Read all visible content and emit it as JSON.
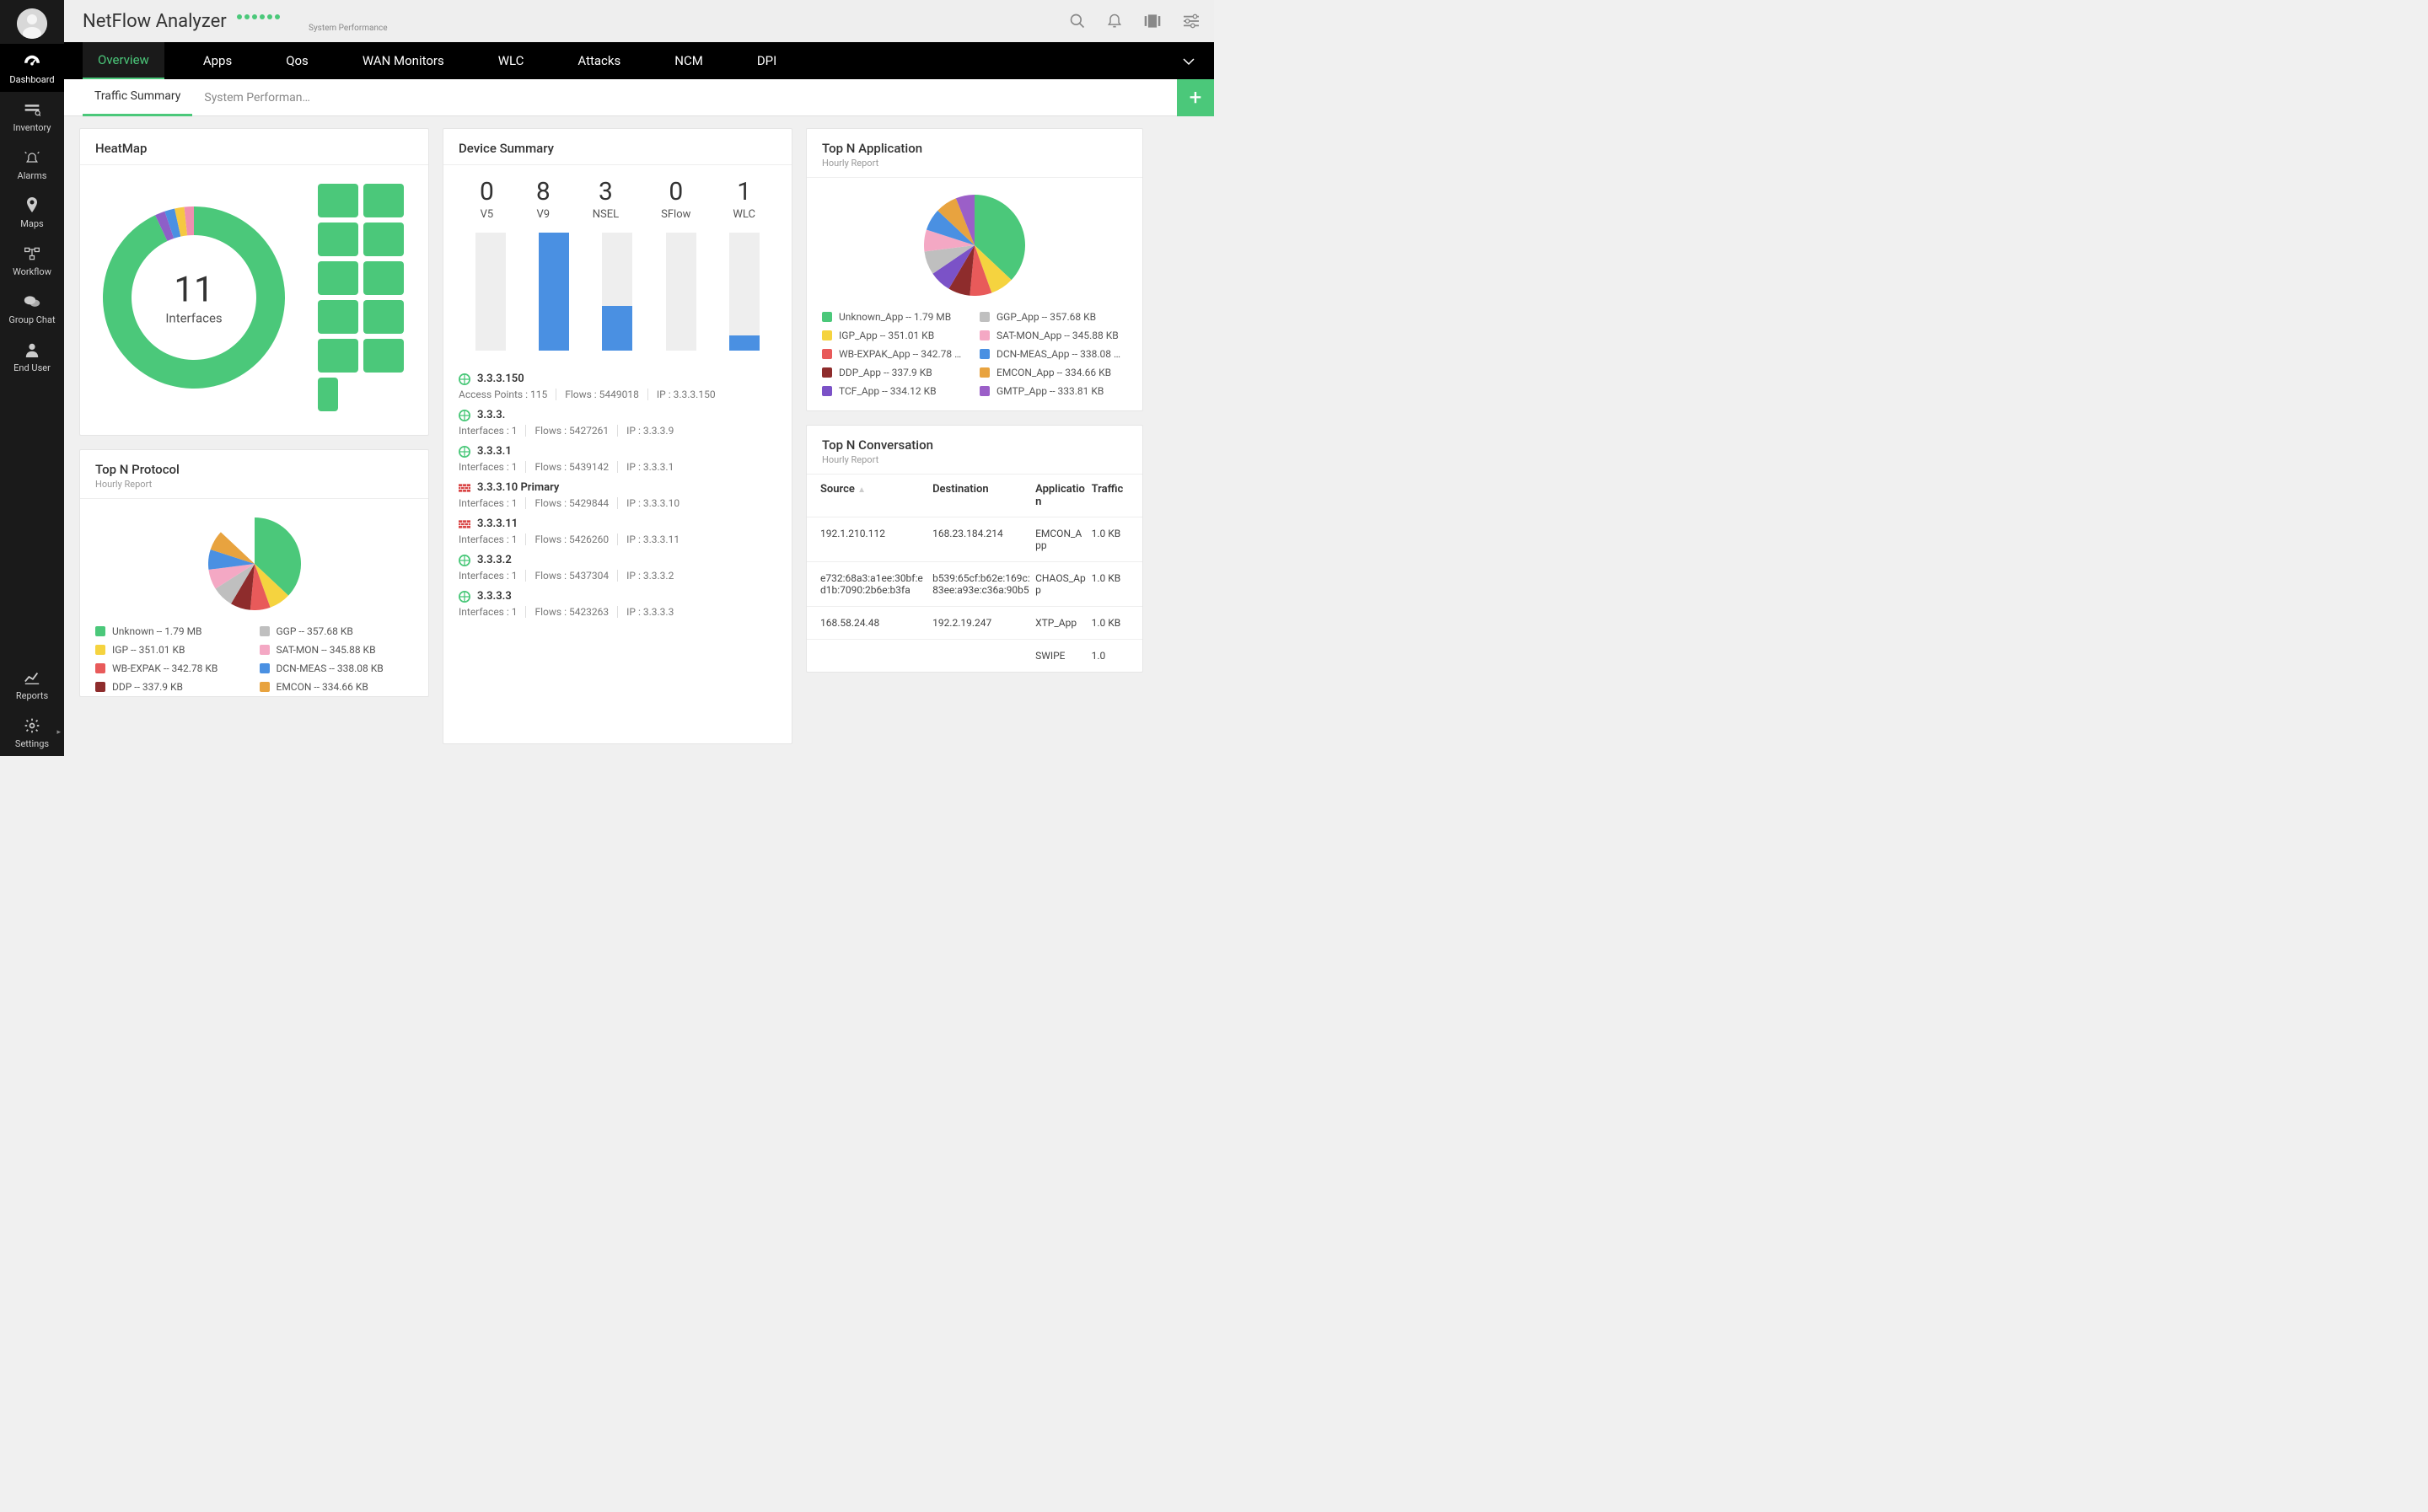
{
  "app": {
    "title": "NetFlow Analyzer",
    "perf_label": "System Performance"
  },
  "sidebar": {
    "items": [
      {
        "label": "Dashboard"
      },
      {
        "label": "Inventory"
      },
      {
        "label": "Alarms"
      },
      {
        "label": "Maps"
      },
      {
        "label": "Workflow"
      },
      {
        "label": "Group Chat"
      },
      {
        "label": "End User"
      }
    ],
    "bottom": [
      {
        "label": "Reports"
      },
      {
        "label": "Settings"
      }
    ]
  },
  "mainnav": [
    "Overview",
    "Apps",
    "Qos",
    "WAN Monitors",
    "WLC",
    "Attacks",
    "NCM",
    "DPI"
  ],
  "subnav": [
    "Traffic Summary",
    "System Performan…"
  ],
  "heatmap": {
    "title": "HeatMap",
    "count": "11",
    "count_label": "Interfaces",
    "donut_colors": [
      "#4bc87a",
      "#8e5fc8",
      "#4a90e2",
      "#f5c842",
      "#f08fb0"
    ],
    "donut_fractions": [
      0.93,
      0.018,
      0.018,
      0.017,
      0.017
    ],
    "grid_cells": 11,
    "cell_color": "#4bc87a"
  },
  "device_summary": {
    "title": "Device Summary",
    "columns": [
      {
        "num": "0",
        "label": "V5",
        "bar": 0
      },
      {
        "num": "8",
        "label": "V9",
        "bar": 100
      },
      {
        "num": "3",
        "label": "NSEL",
        "bar": 38
      },
      {
        "num": "0",
        "label": "SFlow",
        "bar": 0
      },
      {
        "num": "1",
        "label": "WLC",
        "bar": 13
      }
    ],
    "bar_color": "#4a90e2",
    "bar_bg": "#eeeeee",
    "devices": [
      {
        "icon": "globe",
        "name": "3.3.3.150",
        "meta": [
          "Access Points : 115",
          "Flows : 5449018",
          "IP : 3.3.3.150"
        ]
      },
      {
        "icon": "globe",
        "name": "3.3.3.",
        "meta": [
          "Interfaces : 1",
          "Flows : 5427261",
          "IP : 3.3.3.9"
        ]
      },
      {
        "icon": "globe",
        "name": "3.3.3.1",
        "meta": [
          "Interfaces : 1",
          "Flows : 5439142",
          "IP : 3.3.3.1"
        ]
      },
      {
        "icon": "firewall",
        "name": "3.3.3.10 Primary",
        "meta": [
          "Interfaces : 1",
          "Flows : 5429844",
          "IP : 3.3.3.10"
        ]
      },
      {
        "icon": "firewall",
        "name": "3.3.3.11",
        "meta": [
          "Interfaces : 1",
          "Flows : 5426260",
          "IP : 3.3.3.11"
        ]
      },
      {
        "icon": "globe",
        "name": "3.3.3.2",
        "meta": [
          "Interfaces : 1",
          "Flows : 5437304",
          "IP : 3.3.3.2"
        ]
      },
      {
        "icon": "globe",
        "name": "3.3.3.3",
        "meta": [
          "Interfaces : 1",
          "Flows : 5423263",
          "IP : 3.3.3.3"
        ]
      }
    ]
  },
  "top_app": {
    "title": "Top N Application",
    "sub": "Hourly Report",
    "slices": [
      {
        "label": "Unknown_App -- 1.79 MB",
        "color": "#4bc87a",
        "frac": 0.37
      },
      {
        "label": "IGP_App -- 351.01 KB",
        "color": "#f5d33f",
        "frac": 0.075
      },
      {
        "label": "WB-EXPAK_App -- 342.78 …",
        "color": "#e85a5a",
        "frac": 0.07
      },
      {
        "label": "DDP_App -- 337.9 KB",
        "color": "#8e2c2c",
        "frac": 0.07
      },
      {
        "label": "TCF_App -- 334.12 KB",
        "color": "#7b52c7",
        "frac": 0.07
      },
      {
        "label": "GGP_App -- 357.68 KB",
        "color": "#bfbfbf",
        "frac": 0.075
      },
      {
        "label": "SAT-MON_App -- 345.88 KB",
        "color": "#f4a8c4",
        "frac": 0.07
      },
      {
        "label": "DCN-MEAS_App -- 338.08 …",
        "color": "#4a90e2",
        "frac": 0.07
      },
      {
        "label": "EMCON_App -- 334.66 KB",
        "color": "#e8a33f",
        "frac": 0.07
      },
      {
        "label": "GMTP_App -- 333.81 KB",
        "color": "#9b5fc8",
        "frac": 0.06
      }
    ]
  },
  "top_proto": {
    "title": "Top N Protocol",
    "sub": "Hourly Report",
    "slices": [
      {
        "label": "Unknown -- 1.79 MB",
        "color": "#4bc87a",
        "frac": 0.37
      },
      {
        "label": "IGP -- 351.01 KB",
        "color": "#f5d33f",
        "frac": 0.075
      },
      {
        "label": "WB-EXPAK -- 342.78 KB",
        "color": "#e85a5a",
        "frac": 0.07
      },
      {
        "label": "DDP -- 337.9 KB",
        "color": "#8e2c2c",
        "frac": 0.07
      },
      {
        "label": "GGP -- 357.68 KB",
        "color": "#bfbfbf",
        "frac": 0.075
      },
      {
        "label": "SAT-MON -- 345.88 KB",
        "color": "#f4a8c4",
        "frac": 0.07
      },
      {
        "label": "DCN-MEAS -- 338.08 KB",
        "color": "#4a90e2",
        "frac": 0.07
      },
      {
        "label": "EMCON -- 334.66 KB",
        "color": "#e8a33f",
        "frac": 0.07
      }
    ]
  },
  "top_conv": {
    "title": "Top N Conversation",
    "sub": "Hourly Report",
    "columns": [
      "Source",
      "Destination",
      "Application",
      "Traffic"
    ],
    "rows": [
      [
        "192.1.210.112",
        "168.23.184.214",
        "EMCON_App",
        "1.0 KB"
      ],
      [
        "e732:68a3:a1ee:30bf:ed1b:7090:2b6e:b3fa",
        "b539:65cf:b62e:169c:83ee:a93e:c36a:90b5",
        "CHAOS_App",
        "1.0 KB"
      ],
      [
        "168.58.24.48",
        "192.2.19.247",
        "XTP_App",
        "1.0 KB"
      ],
      [
        "",
        "",
        "SWIPE",
        "1.0"
      ]
    ]
  }
}
